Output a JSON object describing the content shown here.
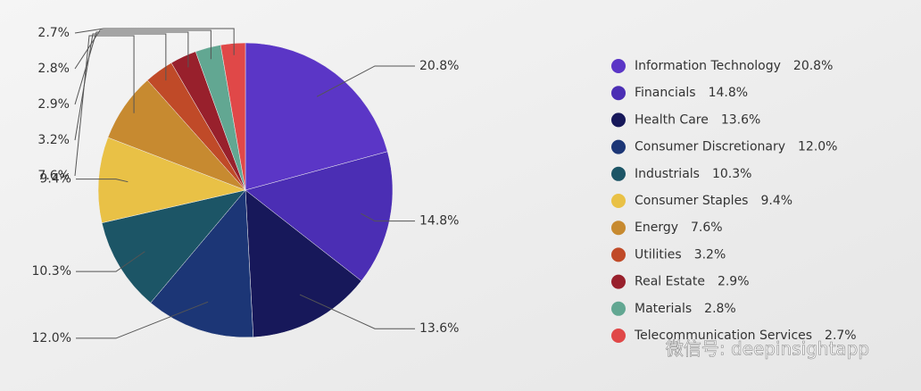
{
  "chart_data": {
    "type": "pie",
    "categories": [
      "Information Technology",
      "Financials",
      "Health Care",
      "Consumer Discretionary",
      "Industrials",
      "Consumer Staples",
      "Energy",
      "Utilities",
      "Real Estate",
      "Materials",
      "Telecommunication Services"
    ],
    "values": [
      20.8,
      14.8,
      13.6,
      12.0,
      10.3,
      9.4,
      7.6,
      3.2,
      2.9,
      2.8,
      2.7
    ],
    "value_labels": [
      "20.8%",
      "14.8%",
      "13.6%",
      "12.0%",
      "10.3%",
      "9.4%",
      "7.6%",
      "3.2%",
      "2.9%",
      "2.8%",
      "2.7%"
    ],
    "colors": [
      "#5b36c6",
      "#4b2eb4",
      "#17185a",
      "#1c3676",
      "#1c5566",
      "#e9c146",
      "#c78a30",
      "#c04a28",
      "#98202c",
      "#62a792",
      "#e04848"
    ],
    "legend": "right"
  },
  "watermark": "微信号: deepinsightapp"
}
